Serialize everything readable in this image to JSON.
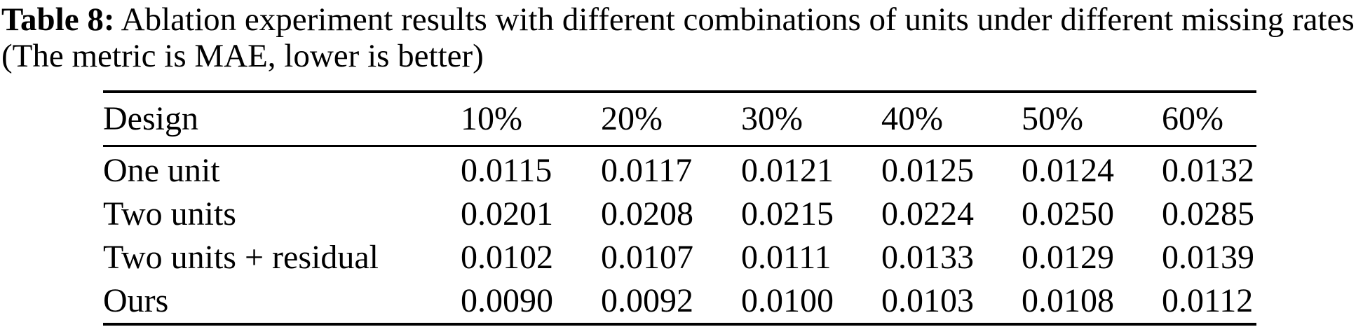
{
  "colors": {
    "text": "#000000",
    "background": "#ffffff",
    "rule": "#000000"
  },
  "caption": {
    "label": "Table 8:",
    "text": "Ablation experiment results with different combinations of units under different missing rates (The metric is MAE, lower is better)"
  },
  "table": {
    "columns": [
      "Design",
      "10%",
      "20%",
      "30%",
      "40%",
      "50%",
      "60%"
    ],
    "rows": [
      {
        "design": "One unit",
        "values": [
          "0.0115",
          "0.0117",
          "0.0121",
          "0.0125",
          "0.0124",
          "0.0132"
        ]
      },
      {
        "design": "Two units",
        "values": [
          "0.0201",
          "0.0208",
          "0.0215",
          "0.0224",
          "0.0250",
          "0.0285"
        ]
      },
      {
        "design": "Two units + residual",
        "values": [
          "0.0102",
          "0.0107",
          "0.0111",
          "0.0133",
          "0.0129",
          "0.0139"
        ]
      },
      {
        "design": "Ours",
        "values": [
          "0.0090",
          "0.0092",
          "0.0100",
          "0.0103",
          "0.0108",
          "0.0112"
        ]
      }
    ]
  }
}
